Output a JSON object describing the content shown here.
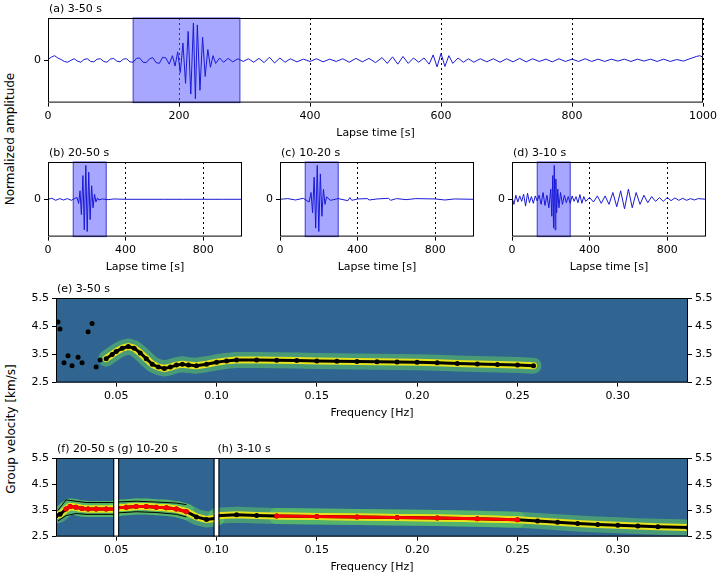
{
  "chart_data": [
    {
      "type": "line",
      "title": "(a) 3-50 s",
      "color": "#1a1ad6",
      "grid": "x",
      "window": [
        130,
        293
      ],
      "xlim": [
        0,
        1000
      ],
      "xticks": [
        0,
        200,
        400,
        600,
        800,
        1000
      ],
      "ylim": [
        -1.1,
        1.1
      ],
      "yticks": [
        0
      ],
      "xlabel": "Lapse time [s]",
      "ylabel": "Normalized amplitude",
      "x": [
        0,
        5,
        10,
        15,
        20,
        25,
        30,
        35,
        40,
        45,
        50,
        55,
        60,
        65,
        70,
        75,
        80,
        85,
        90,
        95,
        100,
        105,
        110,
        115,
        120,
        125,
        130,
        135,
        140,
        145,
        150,
        155,
        160,
        165,
        170,
        175,
        180,
        185,
        190,
        194,
        198,
        202,
        206,
        210,
        214,
        218,
        222,
        225,
        228,
        232,
        236,
        240,
        244,
        248,
        252,
        256,
        262,
        268,
        275,
        282,
        290,
        298,
        306,
        314,
        322,
        330,
        338,
        346,
        354,
        362,
        370,
        380,
        390,
        400,
        410,
        420,
        430,
        440,
        450,
        460,
        470,
        480,
        490,
        500,
        510,
        518,
        526,
        534,
        542,
        550,
        558,
        566,
        574,
        582,
        588,
        594,
        600,
        606,
        612,
        618,
        626,
        634,
        642,
        650,
        660,
        670,
        680,
        690,
        700,
        710,
        720,
        730,
        740,
        750,
        760,
        770,
        780,
        790,
        800,
        810,
        820,
        830,
        840,
        850,
        860,
        870,
        880,
        890,
        900,
        910,
        920,
        930,
        940,
        950,
        960,
        970,
        980,
        990,
        995,
        1000
      ],
      "values": [
        0.02,
        0.08,
        0.12,
        0.06,
        0.02,
        -0.03,
        -0.05,
        0.0,
        0.04,
        -0.02,
        -0.05,
        0.02,
        0.04,
        -0.03,
        -0.04,
        0.03,
        0.04,
        -0.03,
        -0.05,
        0.03,
        0.05,
        -0.02,
        -0.04,
        0.03,
        0.04,
        -0.04,
        -0.05,
        0.05,
        0.06,
        -0.05,
        -0.06,
        0.04,
        0.07,
        -0.06,
        -0.08,
        0.08,
        0.06,
        -0.1,
        0.12,
        -0.15,
        0.22,
        -0.32,
        0.45,
        -0.6,
        0.75,
        -0.88,
        0.97,
        -1.0,
        0.92,
        -0.78,
        0.6,
        -0.42,
        0.28,
        -0.18,
        0.12,
        -0.08,
        0.06,
        -0.05,
        0.05,
        -0.04,
        0.04,
        -0.03,
        0.04,
        -0.05,
        0.05,
        -0.06,
        0.08,
        -0.07,
        0.06,
        -0.05,
        0.04,
        -0.04,
        0.03,
        -0.03,
        0.04,
        -0.04,
        0.03,
        -0.03,
        0.04,
        -0.05,
        0.05,
        -0.04,
        0.05,
        -0.06,
        0.07,
        -0.08,
        0.09,
        -0.1,
        0.1,
        -0.08,
        0.06,
        -0.05,
        0.06,
        -0.1,
        0.14,
        -0.17,
        0.18,
        -0.16,
        0.12,
        -0.08,
        0.06,
        -0.05,
        0.04,
        -0.05,
        0.04,
        -0.04,
        0.04,
        -0.05,
        0.04,
        -0.04,
        0.05,
        -0.04,
        0.04,
        -0.03,
        0.03,
        -0.04,
        0.04,
        -0.03,
        0.03,
        -0.03,
        0.04,
        -0.03,
        0.03,
        -0.03,
        0.03,
        -0.02,
        0.03,
        -0.03,
        0.03,
        -0.02,
        0.03,
        -0.03,
        0.03,
        -0.03,
        0.02,
        -0.02,
        0.04,
        0.1,
        0.12,
        0.08
      ]
    },
    {
      "type": "line",
      "title": "(b) 20-50 s",
      "color": "#1a1ad6",
      "grid": "x",
      "window": [
        130,
        300
      ],
      "xlim": [
        0,
        1000
      ],
      "xticks": [
        0,
        400,
        800
      ],
      "ylim": [
        -1.1,
        1.1
      ],
      "yticks": [
        0
      ],
      "xlabel": "Lapse time [s]",
      "x": [
        0,
        20,
        40,
        60,
        80,
        100,
        120,
        140,
        150,
        158,
        165,
        172,
        180,
        187,
        195,
        202,
        210,
        217,
        225,
        232,
        240,
        247,
        255,
        262,
        280,
        310,
        340,
        400,
        500,
        600,
        700,
        800,
        900,
        1000
      ],
      "values": [
        0.0,
        0.03,
        -0.03,
        0.02,
        -0.02,
        0.02,
        -0.03,
        0.03,
        0.05,
        -0.12,
        0.25,
        -0.45,
        0.7,
        -0.9,
        1.0,
        -0.95,
        0.8,
        -0.6,
        0.4,
        -0.25,
        0.15,
        -0.08,
        0.04,
        -0.02,
        0.01,
        -0.01,
        0.01,
        0.0,
        0.0,
        0.0,
        0.0,
        0.0,
        0.0,
        0.0
      ]
    },
    {
      "type": "line",
      "title": "(c) 10-20 s",
      "color": "#1a1ad6",
      "grid": "x",
      "window": [
        130,
        300
      ],
      "xlim": [
        0,
        1000
      ],
      "xticks": [
        0,
        400,
        800
      ],
      "ylim": [
        -1.1,
        1.1
      ],
      "yticks": [
        0
      ],
      "xlabel": "Lapse time [s]",
      "x": [
        0,
        40,
        80,
        120,
        150,
        160,
        168,
        176,
        184,
        192,
        200,
        208,
        216,
        224,
        232,
        240,
        260,
        300,
        350,
        360,
        370,
        400,
        450,
        460,
        500,
        560,
        570,
        600,
        650,
        700,
        800,
        850,
        900,
        1000
      ],
      "values": [
        0.0,
        0.02,
        -0.02,
        0.03,
        -0.08,
        0.2,
        -0.4,
        0.65,
        -0.85,
        1.0,
        -0.95,
        0.75,
        -0.5,
        0.3,
        -0.15,
        0.07,
        -0.03,
        0.02,
        -0.04,
        0.05,
        -0.03,
        0.01,
        0.02,
        -0.02,
        0.01,
        0.03,
        -0.03,
        0.02,
        -0.01,
        0.02,
        0.01,
        -0.02,
        0.01,
        0.0
      ]
    },
    {
      "type": "line",
      "title": "(d) 3-10 s",
      "color": "#1a1ad6",
      "grid": "x",
      "window": [
        130,
        300
      ],
      "xlim": [
        0,
        1000
      ],
      "xticks": [
        0,
        400,
        800
      ],
      "ylim": [
        -1.1,
        1.1
      ],
      "yticks": [
        0
      ],
      "xlabel": "Lapse time [s]",
      "x": [
        0,
        10,
        20,
        30,
        40,
        50,
        60,
        70,
        80,
        90,
        100,
        110,
        120,
        130,
        140,
        150,
        160,
        170,
        180,
        190,
        200,
        205,
        210,
        214,
        218,
        222,
        226,
        230,
        236,
        242,
        250,
        260,
        270,
        280,
        290,
        300,
        310,
        320,
        330,
        340,
        350,
        360,
        370,
        380,
        400,
        420,
        440,
        460,
        480,
        500,
        520,
        540,
        560,
        580,
        600,
        620,
        640,
        660,
        680,
        700,
        720,
        740,
        760,
        780,
        800,
        820,
        840,
        860,
        880,
        900,
        920,
        940,
        960,
        1000
      ],
      "values": [
        0.05,
        -0.15,
        0.12,
        -0.08,
        0.1,
        -0.06,
        0.15,
        -0.2,
        0.18,
        -0.1,
        0.08,
        -0.12,
        0.1,
        -0.05,
        0.12,
        -0.15,
        0.2,
        -0.18,
        0.12,
        -0.25,
        0.3,
        -0.5,
        0.7,
        -0.85,
        1.0,
        -0.9,
        0.6,
        -0.4,
        0.3,
        -0.25,
        0.2,
        -0.15,
        0.12,
        -0.1,
        0.08,
        -0.12,
        0.1,
        -0.06,
        0.08,
        -0.1,
        0.14,
        -0.12,
        0.08,
        -0.06,
        0.05,
        -0.08,
        0.1,
        -0.12,
        0.1,
        -0.15,
        0.2,
        -0.22,
        0.25,
        -0.28,
        0.3,
        -0.25,
        0.2,
        -0.15,
        0.12,
        -0.1,
        0.08,
        -0.06,
        0.05,
        -0.06,
        0.05,
        -0.04,
        0.04,
        -0.03,
        0.03,
        -0.03,
        0.02,
        -0.02,
        0.02,
        0.0
      ]
    },
    {
      "type": "scatter",
      "title": "(e) 3-50 s",
      "xlim": [
        0.02,
        0.335
      ],
      "xticks": [
        0.05,
        {
          "value": 0.1,
          "label": "0.10"
        },
        0.15,
        {
          "value": 0.2,
          "label": "0.20"
        },
        0.25,
        {
          "value": 0.3,
          "label": "0.30"
        }
      ],
      "ylim": [
        2.5,
        5.5
      ],
      "yticks": [
        2.5,
        3.5,
        4.5,
        5.5
      ],
      "y2lim": [
        2.5,
        5.5
      ],
      "y2ticks": [
        2.5,
        3.5,
        4.5,
        5.5
      ],
      "xlabel": "Frequency [Hz]",
      "ylabel": "Group velocity [km/s]",
      "series": [
        {
          "color": "#000000",
          "marker": "circle",
          "line_style": "none",
          "x": [
            0.021,
            0.022,
            0.024,
            0.026,
            0.028,
            0.031,
            0.033,
            0.036,
            0.038,
            0.04,
            0.042
          ],
          "values": [
            4.65,
            4.4,
            3.2,
            3.45,
            3.1,
            3.4,
            3.2,
            4.3,
            4.6,
            3.05,
            3.3
          ]
        },
        {
          "color": "#000000",
          "marker": "circle",
          "line_style": "solid",
          "x": [
            0.045,
            0.048,
            0.05,
            0.053,
            0.056,
            0.059,
            0.062,
            0.065,
            0.068,
            0.071,
            0.074,
            0.077,
            0.08,
            0.083,
            0.086,
            0.09,
            0.095,
            0.1,
            0.105,
            0.11,
            0.12,
            0.13,
            0.14,
            0.15,
            0.16,
            0.17,
            0.18,
            0.19,
            0.2,
            0.21,
            0.22,
            0.23,
            0.24,
            0.25,
            0.258
          ],
          "values": [
            3.35,
            3.5,
            3.6,
            3.72,
            3.78,
            3.72,
            3.55,
            3.35,
            3.15,
            3.05,
            3.0,
            3.05,
            3.12,
            3.15,
            3.12,
            3.1,
            3.15,
            3.22,
            3.27,
            3.3,
            3.3,
            3.29,
            3.28,
            3.27,
            3.26,
            3.25,
            3.24,
            3.23,
            3.22,
            3.2,
            3.18,
            3.16,
            3.14,
            3.12,
            3.1
          ]
        }
      ]
    },
    {
      "type": "scatter",
      "title": "(f) 20-50 s",
      "xlim": [
        0.02,
        0.05
      ],
      "ylim": [
        2.5,
        5.5
      ],
      "yticks": [
        2.5,
        3.5,
        4.5,
        5.5
      ],
      "series": [
        {
          "color": "#000000",
          "marker": "none",
          "line_style": "solid",
          "x": [
            0.021,
            0.025,
            0.03,
            0.035,
            0.04,
            0.05
          ],
          "values": [
            3.5,
            3.9,
            3.85,
            3.8,
            3.8,
            3.8
          ]
        },
        {
          "color": "#000000",
          "marker": "none",
          "line_style": "solid",
          "x": [
            0.021,
            0.025,
            0.03,
            0.035,
            0.04,
            0.05
          ],
          "values": [
            3.1,
            3.3,
            3.38,
            3.35,
            3.35,
            3.35
          ]
        },
        {
          "color": "#000000",
          "marker": "circle",
          "line_style": "solid",
          "x": [
            0.02,
            0.022,
            0.025,
            0.027,
            0.03,
            0.033,
            0.036,
            0.04,
            0.045,
            0.05
          ],
          "values": [
            3.3,
            3.35,
            3.55,
            3.65,
            3.62,
            3.57,
            3.55,
            3.55,
            3.55,
            3.55
          ]
        },
        {
          "color": "#ff0000",
          "marker": "circle",
          "line_style": "solid",
          "x": [
            0.025,
            0.027,
            0.03,
            0.033,
            0.036,
            0.04,
            0.045,
            0.05
          ],
          "values": [
            3.55,
            3.65,
            3.62,
            3.57,
            3.55,
            3.55,
            3.55,
            3.55
          ]
        }
      ]
    },
    {
      "type": "scatter",
      "title": "(g) 10-20 s",
      "xlim": [
        0.05,
        0.1
      ],
      "xticks": [
        0.05,
        {
          "value": 0.1,
          "label": "0.10"
        }
      ],
      "ylim": [
        2.5,
        5.5
      ],
      "series": [
        {
          "color": "#000000",
          "marker": "none",
          "line_style": "solid",
          "x": [
            0.05,
            0.06,
            0.07,
            0.08,
            0.085
          ],
          "values": [
            3.82,
            3.85,
            3.82,
            3.78,
            3.72
          ]
        },
        {
          "color": "#000000",
          "marker": "none",
          "line_style": "solid",
          "x": [
            0.05,
            0.06,
            0.07,
            0.08,
            0.085
          ],
          "values": [
            3.4,
            3.45,
            3.42,
            3.35,
            3.25
          ]
        },
        {
          "color": "#000000",
          "marker": "circle",
          "line_style": "solid",
          "x": [
            0.05,
            0.055,
            0.06,
            0.065,
            0.07,
            0.075,
            0.08,
            0.085,
            0.09,
            0.095,
            0.1
          ],
          "values": [
            3.6,
            3.62,
            3.65,
            3.65,
            3.62,
            3.6,
            3.55,
            3.45,
            3.25,
            3.15,
            3.2
          ]
        },
        {
          "color": "#ff0000",
          "marker": "circle",
          "line_style": "solid",
          "x": [
            0.05,
            0.055,
            0.06,
            0.065,
            0.07,
            0.075,
            0.08,
            0.085
          ],
          "values": [
            3.6,
            3.62,
            3.65,
            3.65,
            3.62,
            3.6,
            3.55,
            3.45
          ]
        }
      ]
    },
    {
      "type": "scatter",
      "title": "(h) 3-10 s",
      "xlim": [
        0.1,
        0.335
      ],
      "xticks": [
        0.15,
        {
          "value": 0.2,
          "label": "0.20"
        },
        0.25,
        {
          "value": 0.3,
          "label": "0.30"
        }
      ],
      "ylim": [
        2.5,
        5.5
      ],
      "y2lim": [
        2.5,
        5.5
      ],
      "y2ticks": [
        2.5,
        3.5,
        4.5,
        5.5
      ],
      "xlabel": "Frequency [Hz]",
      "series": [
        {
          "color": "#000000",
          "marker": "circle",
          "line_style": "solid",
          "x": [
            0.1,
            0.11,
            0.12,
            0.13,
            0.15,
            0.17,
            0.19,
            0.21,
            0.23,
            0.25,
            0.26,
            0.27,
            0.28,
            0.29,
            0.3,
            0.31,
            0.32,
            0.335
          ],
          "values": [
            3.3,
            3.33,
            3.31,
            3.29,
            3.27,
            3.25,
            3.23,
            3.21,
            3.18,
            3.14,
            3.1,
            3.05,
            3.0,
            2.96,
            2.93,
            2.9,
            2.88,
            2.85
          ]
        },
        {
          "color": "#ff0000",
          "marker": "circle",
          "line_style": "solid",
          "x": [
            0.13,
            0.15,
            0.17,
            0.19,
            0.21,
            0.23,
            0.25
          ],
          "values": [
            3.29,
            3.27,
            3.25,
            3.23,
            3.21,
            3.18,
            3.14
          ]
        }
      ]
    }
  ]
}
